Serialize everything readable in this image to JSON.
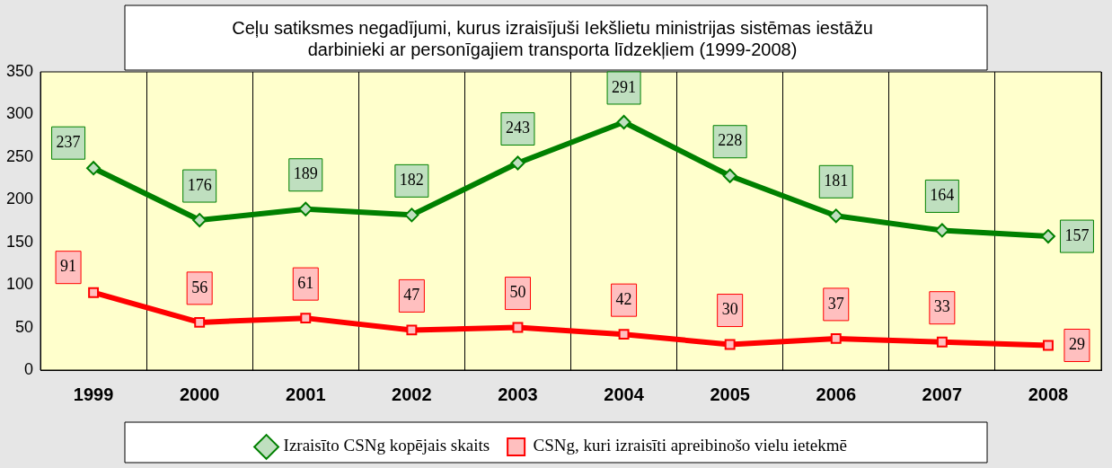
{
  "chart_data": {
    "type": "line",
    "title": "Ceļu satiksmes negadījumi, kurus izraisījuši Iekšlietu ministrijas sistēmas iestāžu\ndarbinieki ar personīgajiem transporta līdzekļiem (1999-2008)",
    "categories": [
      "1999",
      "2000",
      "2001",
      "2002",
      "2003",
      "2004",
      "2005",
      "2006",
      "2007",
      "2008"
    ],
    "series": [
      {
        "name": "Izraisīto CSNg kopējais skaits",
        "color": "#008000",
        "marker": "diamond",
        "values": [
          237,
          176,
          189,
          182,
          243,
          291,
          228,
          181,
          164,
          157
        ]
      },
      {
        "name": "CSNg, kuri izraisīti apreibinošo vielu ietekmē",
        "color": "#ff0000",
        "marker": "square",
        "values": [
          91,
          56,
          61,
          47,
          50,
          42,
          30,
          37,
          33,
          29
        ]
      }
    ],
    "ylim": [
      0,
      350
    ],
    "yticks": [
      0,
      50,
      100,
      150,
      200,
      250,
      300,
      350
    ],
    "grid": "x",
    "legend": "bottom",
    "data_labels": true,
    "line_style": "solid"
  }
}
